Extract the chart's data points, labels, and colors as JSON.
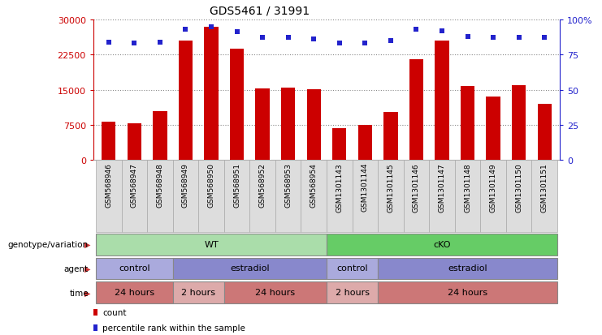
{
  "title": "GDS5461 / 31991",
  "samples": [
    "GSM568946",
    "GSM568947",
    "GSM568948",
    "GSM568949",
    "GSM568950",
    "GSM568951",
    "GSM568952",
    "GSM568953",
    "GSM568954",
    "GSM1301143",
    "GSM1301144",
    "GSM1301145",
    "GSM1301146",
    "GSM1301147",
    "GSM1301148",
    "GSM1301149",
    "GSM1301150",
    "GSM1301151"
  ],
  "counts": [
    8200,
    7900,
    10500,
    25500,
    28500,
    23800,
    15300,
    15500,
    15100,
    6800,
    7500,
    10200,
    21500,
    25500,
    15800,
    13500,
    16000,
    12000
  ],
  "percentile_ranks": [
    84,
    83,
    84,
    93,
    95,
    91,
    87,
    87,
    86,
    83,
    83,
    85,
    93,
    92,
    88,
    87,
    87,
    87
  ],
  "bar_color": "#cc0000",
  "square_color": "#2222cc",
  "ylim_left": [
    0,
    30000
  ],
  "ylim_right": [
    0,
    100
  ],
  "yticks_left": [
    0,
    7500,
    15000,
    22500,
    30000
  ],
  "yticks_right": [
    0,
    25,
    50,
    75,
    100
  ],
  "ytick_labels_right": [
    "0",
    "25",
    "50",
    "75",
    "100%"
  ],
  "grid_dotted_values": [
    7500,
    15000,
    22500,
    30000
  ],
  "genotype_groups": [
    {
      "label": "WT",
      "start": 0,
      "end": 9,
      "color": "#aaddaa"
    },
    {
      "label": "cKO",
      "start": 9,
      "end": 18,
      "color": "#66cc66"
    }
  ],
  "agent_groups": [
    {
      "label": "control",
      "start": 0,
      "end": 3,
      "color": "#aaaadd"
    },
    {
      "label": "estradiol",
      "start": 3,
      "end": 9,
      "color": "#8888cc"
    },
    {
      "label": "control",
      "start": 9,
      "end": 11,
      "color": "#aaaadd"
    },
    {
      "label": "estradiol",
      "start": 11,
      "end": 18,
      "color": "#8888cc"
    }
  ],
  "time_groups": [
    {
      "label": "24 hours",
      "start": 0,
      "end": 3,
      "color": "#cc7777"
    },
    {
      "label": "2 hours",
      "start": 3,
      "end": 5,
      "color": "#ddaaaa"
    },
    {
      "label": "24 hours",
      "start": 5,
      "end": 9,
      "color": "#cc7777"
    },
    {
      "label": "2 hours",
      "start": 9,
      "end": 11,
      "color": "#ddaaaa"
    },
    {
      "label": "24 hours",
      "start": 11,
      "end": 18,
      "color": "#cc7777"
    }
  ],
  "row_labels": [
    "genotype/variation",
    "agent",
    "time"
  ],
  "legend_items": [
    {
      "color": "#cc0000",
      "label": "count"
    },
    {
      "color": "#2222cc",
      "label": "percentile rank within the sample"
    }
  ],
  "bg_color": "#ffffff",
  "tick_color_left": "#cc0000",
  "tick_color_right": "#2222cc",
  "sample_bg_color": "#dddddd",
  "sample_border_color": "#aaaaaa"
}
